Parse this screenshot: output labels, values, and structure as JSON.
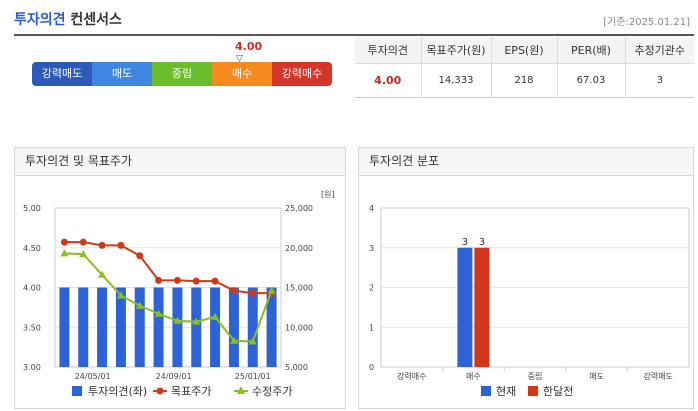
{
  "header": {
    "title_blue": "투자의견",
    "title_dark": "컨센서스",
    "base_date": "[기준:2025.01.21]"
  },
  "consensus": {
    "score": "4.00",
    "marker_icon": "triangle-down-icon",
    "segments": [
      {
        "label": "강력매도",
        "color": "#2d5ab8"
      },
      {
        "label": "매도",
        "color": "#3f86e0"
      },
      {
        "label": "중립",
        "color": "#6bbd2b"
      },
      {
        "label": "매수",
        "color": "#f58a1f"
      },
      {
        "label": "강력매수",
        "color": "#d5362a"
      }
    ]
  },
  "summary": {
    "headers": [
      "투자의견",
      "목표주가(원)",
      "EPS(원)",
      "PER(배)",
      "추정기관수"
    ],
    "values": [
      "4.00",
      "14,333",
      "218",
      "67.03",
      "3"
    ]
  },
  "left_panel": {
    "title": "투자의견 및 목표주가"
  },
  "right_panel": {
    "title": "투자의견 분포"
  },
  "chart_data": [
    {
      "type": "bar+line",
      "y_left": {
        "ticks": [
          "5.00",
          "4.50",
          "4.00",
          "3.50",
          "3.00"
        ],
        "ylim": [
          3.0,
          5.0
        ]
      },
      "y_right": {
        "unit": "[원]",
        "ticks": [
          "25,000",
          "20,000",
          "15,000",
          "10,000",
          "5,000"
        ],
        "ylim": [
          5000,
          25000
        ]
      },
      "x_ticks": [
        "24/05/01",
        "24/09/01",
        "25/01/01"
      ],
      "series": [
        {
          "name": "투자의견(좌)",
          "kind": "bar",
          "color": "#2d63d6",
          "values": [
            4,
            4,
            4,
            4,
            4,
            4,
            4,
            4,
            4,
            4,
            4,
            4
          ]
        },
        {
          "name": "목표주가",
          "kind": "line",
          "color": "#cc3a1a",
          "values": [
            20700,
            20700,
            20300,
            20300,
            19000,
            15900,
            15900,
            15800,
            15800,
            14600,
            14300,
            14300
          ]
        },
        {
          "name": "수정주가",
          "kind": "line",
          "color": "#8dbd1f",
          "values": [
            19300,
            19200,
            16600,
            14000,
            12700,
            11700,
            10800,
            10700,
            11300,
            8300,
            8200,
            14600
          ]
        }
      ],
      "legend_position": "bottom"
    },
    {
      "type": "bar",
      "categories": [
        "강력매수",
        "매수",
        "중립",
        "매도",
        "강력매도"
      ],
      "ylim": [
        0,
        4
      ],
      "y_ticks": [
        "4",
        "3",
        "2",
        "1",
        "0"
      ],
      "series": [
        {
          "name": "현재",
          "color": "#2d63d6",
          "values": [
            0,
            3,
            0,
            0,
            0
          ]
        },
        {
          "name": "한달전",
          "color": "#d4361c",
          "values": [
            0,
            3,
            0,
            0,
            0
          ]
        }
      ],
      "data_labels": [
        {
          "series": 0,
          "category": 1,
          "text": "3"
        },
        {
          "series": 1,
          "category": 1,
          "text": "3"
        }
      ],
      "legend_position": "bottom"
    }
  ]
}
